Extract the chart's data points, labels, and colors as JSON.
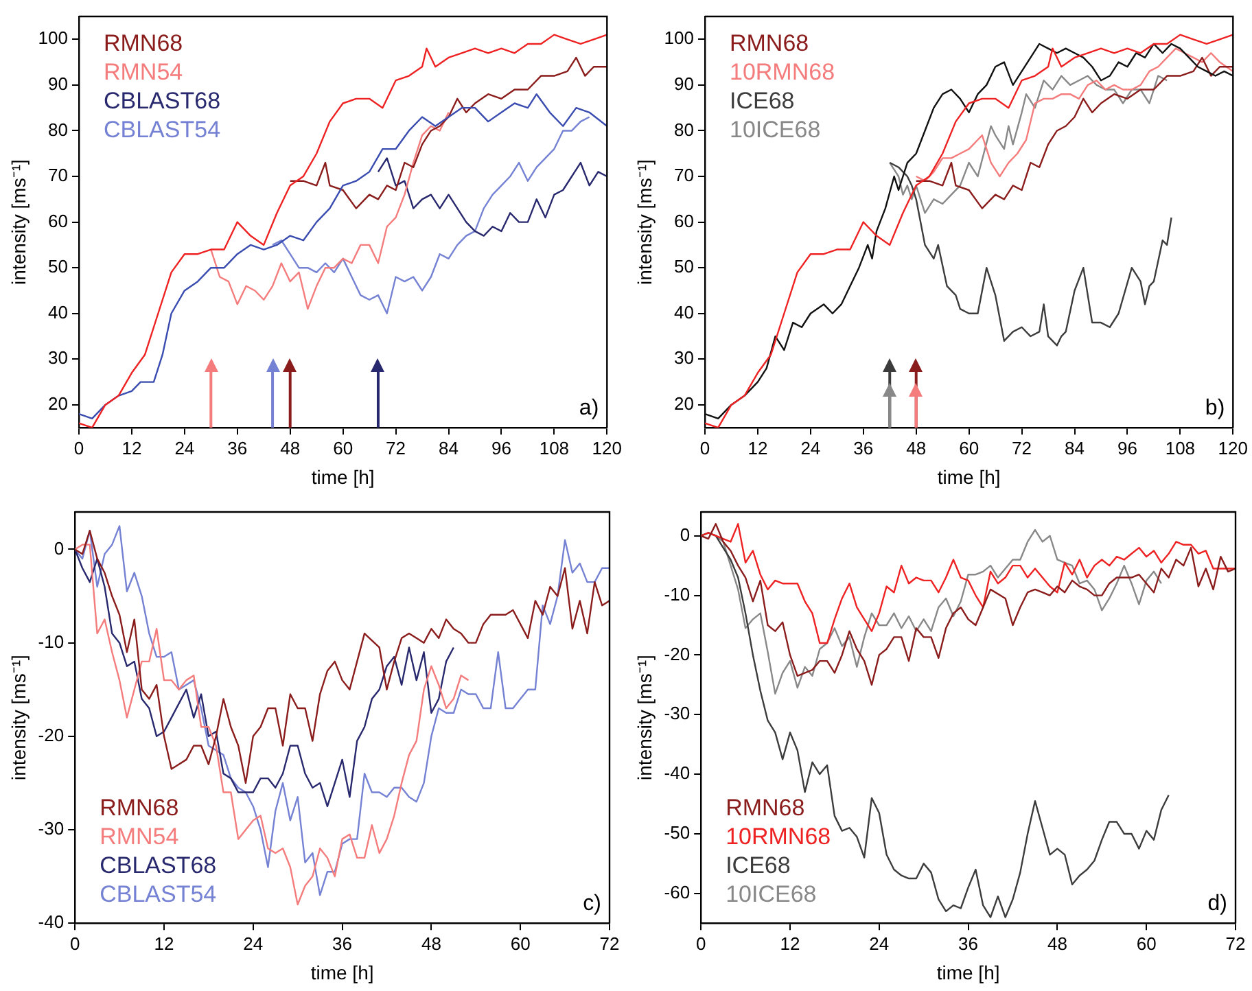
{
  "chart_data": [
    {
      "type": "line",
      "xlabel": "time [h]",
      "ylabel": "intensity [ms⁻¹]",
      "xlim": [
        0,
        120
      ],
      "ylim": [
        15,
        105
      ],
      "xticks": [
        0,
        12,
        24,
        36,
        48,
        60,
        72,
        84,
        96,
        108,
        120
      ],
      "yticks": [
        20,
        30,
        40,
        50,
        60,
        70,
        80,
        90,
        100
      ],
      "legend": "top left",
      "annotations": [
        "a)"
      ],
      "ref_lines": [
        {
          "axis": "x",
          "value": 30,
          "color": "#f47c7c"
        },
        {
          "axis": "x",
          "value": 44,
          "color": "#7582d4"
        },
        {
          "axis": "x",
          "value": 48,
          "color": "#8b1c1c"
        },
        {
          "axis": "x",
          "value": 68,
          "color": "#28286e"
        }
      ],
      "series": [
        {
          "color": "#ee2222",
          "x": [
            0,
            3,
            6,
            9,
            12,
            15,
            18,
            21,
            24,
            27,
            30,
            33,
            36,
            39,
            42,
            45,
            48,
            51,
            54,
            57,
            60,
            63,
            66,
            69,
            72,
            75,
            78,
            79,
            81,
            84,
            87,
            90,
            93,
            96,
            99,
            102,
            105,
            108,
            111,
            114,
            117,
            120
          ],
          "values": [
            16,
            15,
            20,
            22,
            27,
            31,
            40,
            49,
            53,
            53,
            54,
            54,
            60,
            57,
            55,
            62,
            68,
            70,
            75,
            82,
            86,
            87,
            87,
            85,
            91,
            92,
            94,
            98,
            94,
            96,
            97,
            98,
            97,
            98,
            97,
            99,
            99,
            101,
            100,
            99,
            100,
            101
          ]
        },
        {
          "color": "#3a4cb0",
          "x": [
            0,
            3,
            6,
            9,
            12,
            14,
            17,
            19,
            21,
            24,
            27,
            30,
            33,
            36,
            39,
            42,
            45,
            48,
            51,
            54,
            57,
            60,
            63,
            66,
            69,
            72,
            75,
            78,
            81,
            84,
            87,
            90,
            93,
            96,
            99,
            102,
            104,
            107,
            110,
            113,
            116,
            120
          ],
          "values": [
            18,
            17,
            20,
            22,
            23,
            25,
            25,
            31,
            40,
            45,
            47,
            50,
            50,
            53,
            55,
            54,
            55,
            57,
            56,
            60,
            63,
            68,
            69,
            71,
            76,
            76,
            80,
            83,
            81,
            83,
            85,
            85,
            82,
            84,
            86,
            85,
            88,
            84,
            81,
            85,
            84,
            81
          ]
        },
        {
          "name": "RMN68",
          "color": "#8b1c1c",
          "x": [
            48,
            51,
            54,
            56,
            57,
            60,
            63,
            66,
            68,
            70,
            72,
            74,
            76,
            78,
            80,
            82,
            84,
            86,
            88,
            90,
            93,
            96,
            99,
            102,
            105,
            108,
            111,
            113,
            115,
            117,
            120
          ],
          "values": [
            69,
            69,
            68,
            73,
            68,
            67,
            63,
            66,
            65,
            68,
            67,
            73,
            72,
            77,
            80,
            81,
            83,
            87,
            84,
            86,
            88,
            87,
            89,
            89,
            92,
            92,
            93,
            96,
            92,
            94,
            94
          ]
        },
        {
          "name": "RMN54",
          "color": "#f47c7c",
          "x": [
            30,
            32,
            34,
            36,
            38,
            40,
            42,
            44,
            46,
            48,
            50,
            52,
            54,
            56,
            58,
            60,
            62,
            64,
            66,
            68,
            70,
            72,
            74,
            76,
            78,
            80,
            82,
            84
          ],
          "values": [
            54,
            48,
            47,
            42,
            46,
            45,
            43,
            46,
            51,
            47,
            49,
            41,
            46,
            50,
            50,
            52,
            51,
            55,
            55,
            51,
            59,
            61,
            66,
            73,
            79,
            81,
            80,
            84
          ]
        },
        {
          "name": "CBLAST68",
          "color": "#28286e",
          "x": [
            68,
            70,
            72,
            74,
            76,
            78,
            80,
            82,
            84,
            86,
            88,
            90,
            92,
            94,
            96,
            98,
            100,
            102,
            104,
            106,
            108,
            110,
            112,
            114,
            116,
            118,
            120
          ],
          "values": [
            71,
            74,
            68,
            69,
            63,
            65,
            66,
            63,
            66,
            63,
            60,
            58,
            57,
            59,
            58,
            62,
            60,
            60,
            65,
            61,
            66,
            67,
            70,
            73,
            68,
            71,
            70
          ]
        },
        {
          "name": "CBLAST54",
          "color": "#7582d4",
          "x": [
            44,
            46,
            48,
            50,
            52,
            54,
            56,
            58,
            60,
            62,
            64,
            66,
            68,
            70,
            72,
            74,
            76,
            78,
            80,
            82,
            84,
            86,
            88,
            90,
            92,
            94,
            96,
            98,
            100,
            102,
            104,
            106,
            108,
            110,
            112,
            114,
            116
          ],
          "values": [
            55,
            56,
            53,
            50,
            50,
            49,
            51,
            49,
            52,
            48,
            44,
            43,
            44,
            40,
            48,
            47,
            48,
            45,
            48,
            53,
            52,
            55,
            57,
            58,
            63,
            66,
            68,
            70,
            73,
            69,
            72,
            74,
            76,
            80,
            80,
            82,
            83
          ]
        }
      ]
    },
    {
      "type": "line",
      "xlabel": "time [h]",
      "ylabel": "intensity [ms⁻¹]",
      "xlim": [
        0,
        120
      ],
      "ylim": [
        15,
        105
      ],
      "xticks": [
        0,
        12,
        24,
        36,
        48,
        60,
        72,
        84,
        96,
        108,
        120
      ],
      "yticks": [
        20,
        30,
        40,
        50,
        60,
        70,
        80,
        90,
        100
      ],
      "legend": "top left",
      "annotations": [
        "b)"
      ],
      "ref_lines": [
        {
          "axis": "x",
          "value": 42,
          "color": "#3c3c3c"
        },
        {
          "axis": "x",
          "value": 42,
          "color": "#888888"
        },
        {
          "axis": "x",
          "value": 48,
          "color": "#8b1c1c"
        },
        {
          "axis": "x",
          "value": 48,
          "color": "#f47c7c"
        }
      ],
      "series": [
        {
          "color": "#ee2222",
          "x": [
            0,
            3,
            6,
            9,
            12,
            15,
            18,
            21,
            24,
            27,
            30,
            33,
            36,
            39,
            42,
            45,
            48,
            51,
            54,
            57,
            60,
            63,
            66,
            69,
            72,
            75,
            78,
            79,
            81,
            84,
            87,
            90,
            93,
            96,
            99,
            102,
            105,
            108,
            111,
            114,
            117,
            120
          ],
          "values": [
            16,
            15,
            20,
            22,
            27,
            31,
            40,
            49,
            53,
            53,
            54,
            54,
            60,
            57,
            55,
            62,
            68,
            70,
            75,
            82,
            86,
            87,
            87,
            85,
            91,
            92,
            94,
            98,
            94,
            96,
            97,
            98,
            97,
            98,
            97,
            99,
            99,
            101,
            100,
            99,
            100,
            101
          ]
        },
        {
          "color": "#111111",
          "x": [
            0,
            3,
            6,
            9,
            12,
            14,
            16,
            18,
            20,
            22,
            24,
            27,
            29,
            31,
            33,
            35,
            37,
            38,
            39,
            41,
            43,
            44,
            46,
            48,
            50,
            52,
            54,
            56,
            58,
            60,
            62,
            64,
            66,
            68,
            70,
            72,
            74,
            76,
            78,
            80,
            82,
            84,
            86,
            88,
            90,
            92,
            94,
            96,
            98,
            100,
            102,
            104,
            106,
            108,
            110,
            112,
            114,
            116,
            118,
            120
          ],
          "values": [
            18,
            17,
            20,
            22,
            25,
            28,
            35,
            32,
            38,
            37,
            40,
            42,
            40,
            42,
            46,
            50,
            55,
            52,
            58,
            63,
            70,
            67,
            73,
            75,
            80,
            85,
            88,
            89,
            87,
            84,
            88,
            90,
            94,
            95,
            90,
            93,
            96,
            99,
            98,
            97,
            98,
            97,
            96,
            94,
            91,
            92,
            95,
            94,
            97,
            96,
            99,
            97,
            99,
            98,
            96,
            94,
            93,
            92,
            93,
            92
          ]
        },
        {
          "name": "RMN68",
          "color": "#8b1c1c",
          "x": [
            48,
            51,
            54,
            56,
            57,
            60,
            63,
            66,
            68,
            70,
            72,
            74,
            76,
            78,
            80,
            82,
            84,
            86,
            88,
            90,
            93,
            96,
            99,
            102,
            105,
            108,
            111,
            113,
            115,
            117,
            120
          ],
          "values": [
            69,
            69,
            68,
            73,
            68,
            67,
            63,
            66,
            65,
            68,
            67,
            73,
            72,
            77,
            80,
            81,
            83,
            87,
            84,
            86,
            88,
            87,
            89,
            89,
            92,
            92,
            93,
            96,
            92,
            94,
            94
          ]
        },
        {
          "name": "10RMN68",
          "color": "#f47c7c",
          "x": [
            48,
            50,
            52,
            54,
            56,
            58,
            60,
            62,
            63,
            65,
            67,
            69,
            71,
            73,
            75,
            77,
            79,
            81,
            83,
            85,
            87,
            89,
            91,
            93,
            95,
            97,
            99,
            101,
            103,
            105,
            107,
            109,
            111,
            113,
            115,
            117,
            120
          ],
          "values": [
            70,
            69,
            71,
            74,
            74,
            75,
            76,
            78,
            79,
            73,
            70,
            73,
            75,
            78,
            86,
            87,
            87,
            88,
            88,
            87,
            90,
            91,
            89,
            90,
            89,
            89,
            90,
            93,
            94,
            96,
            98,
            97,
            96,
            95,
            97,
            95,
            93
          ]
        },
        {
          "name": "ICE68",
          "color": "#3c3c3c",
          "x": [
            42,
            44,
            46,
            47,
            48,
            49,
            50,
            52,
            53,
            55,
            57,
            58,
            60,
            62,
            64,
            66,
            68,
            70,
            72,
            74,
            76,
            77,
            78,
            80,
            81,
            82,
            84,
            86,
            88,
            90,
            92,
            94,
            97,
            99,
            100,
            101,
            102,
            104,
            105,
            106
          ],
          "values": [
            73,
            72,
            70,
            68,
            65,
            60,
            55,
            52,
            55,
            46,
            44,
            41,
            40,
            40,
            50,
            44,
            34,
            36,
            37,
            35,
            36,
            42,
            35,
            33,
            35,
            36,
            45,
            50,
            38,
            38,
            37,
            40,
            50,
            47,
            42,
            46,
            47,
            56,
            55,
            61
          ]
        },
        {
          "name": "10ICE68",
          "color": "#888888",
          "x": [
            42,
            44,
            45,
            46,
            47,
            48,
            50,
            52,
            54,
            56,
            58,
            60,
            62,
            65,
            66,
            68,
            69,
            70,
            72,
            73,
            75,
            77,
            79,
            81,
            83,
            85,
            87,
            89,
            91,
            93,
            95,
            97,
            99,
            101,
            103,
            105
          ],
          "values": [
            73,
            70,
            66,
            68,
            65,
            68,
            62,
            65,
            64,
            66,
            68,
            73,
            70,
            81,
            79,
            76,
            81,
            77,
            84,
            88,
            85,
            91,
            89,
            92,
            90,
            91,
            92,
            90,
            89,
            89,
            86,
            89,
            89,
            86,
            92,
            91
          ]
        }
      ]
    },
    {
      "type": "line",
      "xlabel": "time [h]",
      "ylabel": "intensity [ms⁻¹]",
      "xlim": [
        0,
        72
      ],
      "ylim": [
        -40,
        4
      ],
      "xticks": [
        0,
        12,
        24,
        36,
        48,
        60,
        72
      ],
      "yticks": [
        -40,
        -30,
        -20,
        -10,
        0
      ],
      "legend": "bottom left",
      "annotations": [
        "c)"
      ],
      "series": [
        {
          "name": "RMN68",
          "color": "#8b1c1c",
          "x": [
            0,
            1,
            2,
            3,
            4,
            5,
            6,
            7,
            8,
            9,
            10,
            11,
            12,
            13,
            15,
            16,
            17,
            18,
            19,
            20,
            21,
            22,
            23,
            24,
            25,
            26,
            27,
            28,
            29,
            30,
            31,
            32,
            33,
            34,
            35,
            36,
            37,
            38,
            39,
            41,
            42,
            43,
            44,
            45,
            46,
            47,
            48,
            49,
            50,
            51,
            52,
            53,
            54,
            55,
            56,
            58,
            59,
            61,
            62,
            63,
            64,
            65,
            66,
            67,
            68,
            69,
            70,
            71,
            72
          ],
          "values": [
            0,
            -0.5,
            2,
            -1,
            -2.5,
            -5,
            -7,
            -11,
            -7.5,
            -15,
            -16,
            -14.5,
            -20,
            -23.5,
            -22.5,
            -21,
            -21,
            -23,
            -20,
            -16,
            -19,
            -21,
            -25,
            -20,
            -19,
            -17,
            -17,
            -21,
            -15.5,
            -17,
            -17,
            -20.5,
            -15.5,
            -13,
            -12,
            -14,
            -15,
            -12,
            -9,
            -10.5,
            -15,
            -12,
            -9.5,
            -9,
            -9.5,
            -10,
            -8.5,
            -9.5,
            -7.5,
            -8.5,
            -9,
            -10,
            -10,
            -8,
            -7,
            -7,
            -6.5,
            -9.5,
            -5.5,
            -7,
            -4,
            -5,
            -2,
            -8.5,
            -5.5,
            -9,
            -3.5,
            -6,
            -5.5
          ]
        },
        {
          "name": "RMN54",
          "color": "#f47c7c",
          "x": [
            0,
            1,
            2,
            3,
            4,
            5,
            6,
            7,
            8,
            9,
            10,
            11,
            12,
            13,
            14,
            15,
            16,
            17,
            18,
            19,
            20,
            21,
            22,
            23,
            24,
            25,
            26,
            27,
            28,
            29,
            30,
            31,
            32,
            33,
            34,
            35,
            36,
            37,
            38,
            39,
            40,
            41,
            42,
            43,
            44,
            45,
            46,
            47,
            48,
            49,
            50,
            51,
            52,
            53
          ],
          "values": [
            0,
            0.5,
            0.5,
            -9,
            -7.5,
            -11,
            -14,
            -18,
            -15,
            -12,
            -12,
            -8.5,
            -14,
            -14,
            -15,
            -14,
            -13.5,
            -19,
            -19,
            -21,
            -26,
            -26,
            -31,
            -30,
            -29,
            -28.5,
            -32,
            -32.5,
            -32,
            -34,
            -38,
            -36,
            -35,
            -32,
            -33,
            -35,
            -31,
            -30.5,
            -33,
            -33,
            -29.5,
            -32.5,
            -31,
            -28.5,
            -25,
            -22,
            -20.5,
            -15,
            -12.5,
            -14.5,
            -17,
            -16,
            -13.5,
            -14
          ]
        },
        {
          "name": "CBLAST68",
          "color": "#28286e",
          "x": [
            0,
            1,
            2,
            3,
            4,
            5,
            6,
            7,
            8,
            9,
            10,
            11,
            12,
            13,
            14,
            15,
            16,
            17,
            18,
            19,
            20,
            21,
            22,
            23,
            24,
            25,
            26,
            27,
            28,
            29,
            30,
            31,
            32,
            33,
            34,
            35,
            36,
            37,
            38,
            39,
            40,
            41,
            42,
            43,
            44,
            45,
            46,
            47,
            48,
            49,
            50,
            51
          ],
          "values": [
            0,
            -2,
            -3.5,
            -1,
            -4,
            -9,
            -10,
            -12.5,
            -12,
            -16,
            -17,
            -20,
            -19.5,
            -18,
            -16.5,
            -15,
            -18,
            -15.5,
            -20,
            -19.5,
            -24,
            -24.5,
            -26,
            -26,
            -26,
            -24.5,
            -24.5,
            -25.5,
            -24,
            -21,
            -21,
            -24,
            -25.5,
            -25,
            -27.5,
            -25,
            -22.5,
            -26.5,
            -20.5,
            -19,
            -16,
            -15,
            -12.5,
            -11.5,
            -14.5,
            -10.5,
            -14,
            -11,
            -17.5,
            -16,
            -12,
            -10.5
          ]
        },
        {
          "name": "CBLAST54",
          "color": "#7582d4",
          "x": [
            0,
            1,
            2,
            3,
            4,
            5,
            6,
            7,
            8,
            9,
            10,
            11,
            12,
            13,
            14,
            15,
            16,
            17,
            18,
            19,
            20,
            21,
            22,
            23,
            24,
            25,
            26,
            27,
            28,
            29,
            30,
            31,
            32,
            33,
            34,
            35,
            36,
            37,
            38,
            39,
            40,
            41,
            42,
            43,
            44,
            45,
            46,
            47,
            48,
            49,
            50,
            51,
            52,
            53,
            54,
            55,
            56,
            57,
            58,
            59,
            60,
            61,
            62,
            63,
            64,
            65,
            66,
            67,
            68,
            69,
            70,
            71,
            72
          ],
          "values": [
            0,
            -1,
            2,
            -4,
            -0.5,
            0.5,
            2.5,
            -4.5,
            -2.5,
            -5,
            -9,
            -11.5,
            -11.5,
            -11,
            -15,
            -14.5,
            -14,
            -17,
            -21,
            -21.5,
            -22,
            -24.5,
            -25.5,
            -26,
            -27.5,
            -30,
            -34,
            -28,
            -25,
            -29,
            -26.5,
            -33.5,
            -32.5,
            -37,
            -34.5,
            -34.5,
            -31.5,
            -31,
            -31,
            -24,
            -26,
            -26,
            -26.5,
            -25.5,
            -25.5,
            -26.5,
            -27,
            -25,
            -20,
            -17,
            -17.5,
            -17.5,
            -15,
            -15.5,
            -15.5,
            -17,
            -17,
            -11,
            -17,
            -17,
            -16,
            -15,
            -15,
            -6,
            -8,
            -5,
            1,
            -2.5,
            -1.5,
            -3.5,
            -3.5,
            -2,
            -2
          ]
        }
      ]
    },
    {
      "type": "line",
      "xlabel": "time [h]",
      "ylabel": "intensity [ms⁻¹]",
      "xlim": [
        0,
        72
      ],
      "ylim": [
        -65,
        4
      ],
      "xticks": [
        0,
        12,
        24,
        36,
        48,
        60,
        72
      ],
      "yticks": [
        -60,
        -50,
        -40,
        -30,
        -20,
        -10,
        0
      ],
      "legend": "bottom left",
      "annotations": [
        "d)"
      ],
      "series": [
        {
          "name": "RMN68",
          "color": "#8b1c1c",
          "x": [
            0,
            1,
            2,
            3,
            4,
            5,
            6,
            7,
            8,
            9,
            10,
            11,
            12,
            13,
            15,
            16,
            17,
            18,
            19,
            20,
            21,
            22,
            23,
            24,
            25,
            26,
            27,
            28,
            29,
            30,
            31,
            32,
            33,
            34,
            35,
            36,
            37,
            38,
            39,
            41,
            42,
            43,
            44,
            45,
            46,
            47,
            48,
            49,
            50,
            51,
            52,
            53,
            54,
            55,
            56,
            58,
            59,
            61,
            62,
            63,
            64,
            65,
            66,
            67,
            68,
            69,
            70,
            71,
            72
          ],
          "values": [
            0,
            -0.5,
            2,
            -1,
            -2.5,
            -5,
            -7,
            -11,
            -7.5,
            -15,
            -16,
            -14.5,
            -20,
            -23.5,
            -22.5,
            -21,
            -21,
            -23,
            -20,
            -16,
            -19,
            -21,
            -25,
            -20,
            -19,
            -17,
            -17,
            -21,
            -15.5,
            -17,
            -17,
            -20.5,
            -15.5,
            -13,
            -12,
            -14,
            -15,
            -12,
            -9,
            -10.5,
            -15,
            -12,
            -9.5,
            -9,
            -9.5,
            -10,
            -8.5,
            -9.5,
            -7.5,
            -8.5,
            -9,
            -10,
            -10,
            -8,
            -7,
            -7,
            -6.5,
            -9.5,
            -5.5,
            -7,
            -4,
            -5,
            -2,
            -8.5,
            -5.5,
            -9,
            -3.5,
            -6,
            -5.5
          ]
        },
        {
          "name": "10RMN68",
          "color": "#ee2222",
          "x": [
            0,
            1,
            2,
            3,
            4,
            5,
            6,
            7,
            8,
            9,
            10,
            11,
            13,
            14,
            15,
            16,
            17,
            18,
            19,
            20,
            21,
            22,
            23,
            24,
            25,
            26,
            27,
            28,
            29,
            30,
            31,
            32,
            33,
            34,
            35,
            36,
            37,
            38,
            39,
            40,
            41,
            42,
            43,
            44,
            45,
            46,
            47,
            48,
            49,
            50,
            51,
            52,
            53,
            54,
            55,
            56,
            57,
            58,
            59,
            60,
            61,
            62,
            63,
            64,
            65,
            66,
            67,
            68,
            69,
            70,
            72
          ],
          "values": [
            0,
            0.5,
            0,
            -0.5,
            -1,
            2,
            -4.5,
            -2.5,
            -6.5,
            -9,
            -7.5,
            -8,
            -8,
            -11,
            -13,
            -18,
            -18,
            -14,
            -10.5,
            -8,
            -12,
            -14,
            -16,
            -13,
            -8.5,
            -9.5,
            -5,
            -8,
            -7,
            -7.5,
            -7.5,
            -9.5,
            -7,
            -4,
            -7,
            -7.5,
            -10,
            -12,
            -6,
            -8,
            -7,
            -5,
            -5,
            -7,
            -5.5,
            -7,
            -8.5,
            -9.5,
            -4.5,
            -6.5,
            -4,
            -7,
            -5,
            -4,
            -5,
            -3.5,
            -4,
            -3,
            -2,
            -3.5,
            -2.5,
            -4.5,
            -3,
            -1,
            -1.5,
            -1.5,
            -3,
            -2.5,
            -5.5,
            -5.5,
            -5.5
          ]
        },
        {
          "name": "ICE68",
          "color": "#3c3c3c",
          "x": [
            0,
            1,
            2,
            3,
            4,
            5,
            6,
            7,
            8,
            9,
            10,
            11,
            12,
            13,
            14,
            15,
            16,
            17,
            18,
            19,
            20,
            21,
            22,
            23,
            24,
            25,
            26,
            27,
            28,
            29,
            30,
            31,
            32,
            33,
            34,
            35,
            36,
            37,
            38,
            39,
            40,
            41,
            42,
            43,
            44,
            45,
            46,
            47,
            48,
            49,
            50,
            51,
            52,
            53,
            54,
            55,
            56,
            57,
            58,
            59,
            60,
            61,
            62,
            63
          ],
          "values": [
            0,
            0.5,
            0,
            -2,
            -4,
            -7,
            -13,
            -20,
            -26,
            -31,
            -33,
            -37.5,
            -33,
            -36,
            -43,
            -38,
            -40,
            -38.5,
            -47,
            -49.5,
            -49,
            -50.5,
            -54,
            -44,
            -46.5,
            -53.5,
            -56,
            -57,
            -57.5,
            -57.5,
            -55,
            -56.5,
            -61,
            -63,
            -62,
            -62.5,
            -59,
            -56,
            -62,
            -64,
            -60.5,
            -64,
            -61,
            -56.5,
            -50,
            -44.5,
            -49,
            -53.5,
            -52.5,
            -53.5,
            -58.5,
            -57,
            -56,
            -54.5,
            -51,
            -48,
            -48,
            -50,
            -50,
            -52.5,
            -49.5,
            -51,
            -46,
            -43.5
          ]
        },
        {
          "name": "10ICE68",
          "color": "#888888",
          "x": [
            0,
            1,
            2,
            3,
            4,
            5,
            6,
            7,
            8,
            9,
            10,
            11,
            12,
            13,
            14,
            15,
            16,
            17,
            18,
            19,
            20,
            21,
            22,
            23,
            24,
            25,
            26,
            27,
            28,
            29,
            30,
            31,
            32,
            33,
            34,
            35,
            36,
            37,
            38,
            39,
            40,
            41,
            42,
            43,
            44,
            45,
            46,
            47,
            48,
            49,
            50,
            51,
            52,
            53,
            54,
            55,
            56,
            57,
            58,
            59,
            60,
            61,
            62
          ],
          "values": [
            0,
            0.5,
            0,
            -1,
            -5,
            -9,
            -15.5,
            -14,
            -13,
            -19.5,
            -26.5,
            -23,
            -21,
            -25.5,
            -22,
            -23.5,
            -19,
            -18,
            -15.5,
            -18.5,
            -17,
            -22,
            -17,
            -13,
            -15,
            -15,
            -13,
            -15.5,
            -13.5,
            -16,
            -14,
            -16,
            -12,
            -10.5,
            -13.5,
            -11,
            -6.5,
            -6.5,
            -6,
            -5,
            -7,
            -5.5,
            -4,
            -4,
            -1,
            1,
            -1,
            0,
            -4,
            -4.5,
            -5,
            -8,
            -7.5,
            -9,
            -12.5,
            -10.5,
            -8,
            -5,
            -8,
            -11.5,
            -7.5,
            -6,
            -8
          ]
        }
      ]
    }
  ]
}
